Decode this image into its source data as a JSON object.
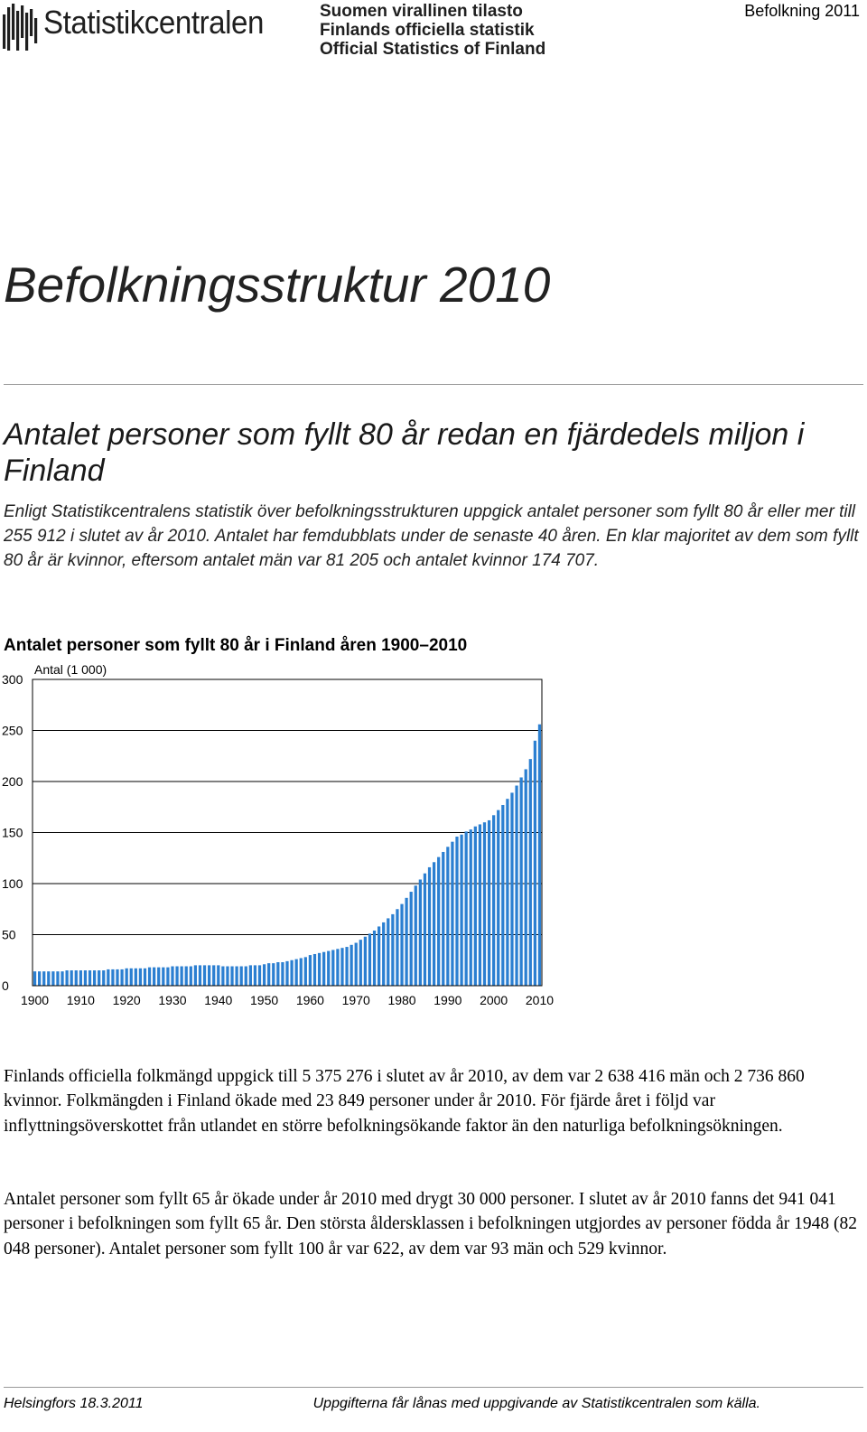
{
  "header": {
    "org_name": "Statistikcentralen",
    "official_lines": [
      "Suomen virallinen tilasto",
      "Finlands officiella statistik",
      "Official Statistics of Finland"
    ],
    "publication": "Befolkning 2011"
  },
  "title": "Befolkningsstruktur 2010",
  "subtitle": "Antalet personer som fyllt 80 år redan en fjärdedels miljon i Finland",
  "intro": "Enligt Statistikcentralens statistik över befolkningsstrukturen uppgick antalet personer som fyllt 80 år eller mer till 255 912 i slutet av år 2010. Antalet har femdubblats under de senaste 40 åren. En klar majoritet av dem som fyllt 80 år är kvinnor, eftersom antalet män var 81 205 och antalet kvinnor 174 707.",
  "chart_title": "Antalet personer som fyllt 80 år i Finland åren 1900–2010",
  "chart_data": {
    "type": "bar",
    "title": "Antalet personer som fyllt 80 år i Finland åren 1900–2010",
    "ylabel": "Antal (1 000)",
    "xlabel": "",
    "ylim": [
      0,
      300
    ],
    "y_ticks": [
      "0",
      "50",
      "100",
      "150",
      "200",
      "250",
      "300"
    ],
    "x_ticks": [
      "1900",
      "1910",
      "1920",
      "1930",
      "1940",
      "1950",
      "1960",
      "1970",
      "1980",
      "1990",
      "2000",
      "2010"
    ],
    "grid": true,
    "bar_color": "#2b7fd1",
    "x_start": 1900,
    "values": [
      14,
      14,
      14,
      14,
      14,
      14,
      14,
      15,
      15,
      15,
      15,
      15,
      15,
      15,
      15,
      15,
      16,
      16,
      16,
      16,
      17,
      17,
      17,
      17,
      17,
      18,
      18,
      18,
      18,
      18,
      19,
      19,
      19,
      19,
      19,
      20,
      20,
      20,
      20,
      20,
      20,
      19,
      19,
      19,
      19,
      19,
      19,
      20,
      20,
      20,
      21,
      22,
      22,
      23,
      23,
      24,
      25,
      26,
      27,
      28,
      30,
      31,
      32,
      33,
      34,
      35,
      36,
      37,
      38,
      40,
      42,
      45,
      48,
      51,
      54,
      58,
      62,
      66,
      70,
      75,
      80,
      86,
      92,
      98,
      104,
      110,
      116,
      121,
      126,
      131,
      136,
      141,
      146,
      148,
      151,
      153,
      156,
      158,
      160,
      162,
      167,
      172,
      177,
      183,
      189,
      196,
      204,
      212,
      222,
      240,
      256
    ]
  },
  "para1": "Finlands officiella folkmängd uppgick till 5 375 276 i slutet av år 2010, av dem var 2 638 416 män och 2 736 860 kvinnor. Folkmängden i Finland ökade med 23 849 personer under år 2010. För fjärde året i följd var inflyttningsöverskottet från utlandet en större befolkningsökande faktor än den naturliga befolkningsökningen.",
  "para2": "Antalet personer som fyllt 65 år ökade under år 2010 med drygt 30 000 personer. I slutet av år 2010 fanns det 941 041 personer i befolkningen som fyllt 65 år. Den största åldersklassen i befolkningen utgjordes av personer födda år 1948 (82 048 personer). Antalet personer som fyllt 100 år var 622, av dem var 93 män och 529 kvinnor.",
  "footer": {
    "left": "Helsingfors 18.3.2011",
    "right": "Uppgifterna får lånas med uppgivande av Statistikcentralen som källa."
  }
}
